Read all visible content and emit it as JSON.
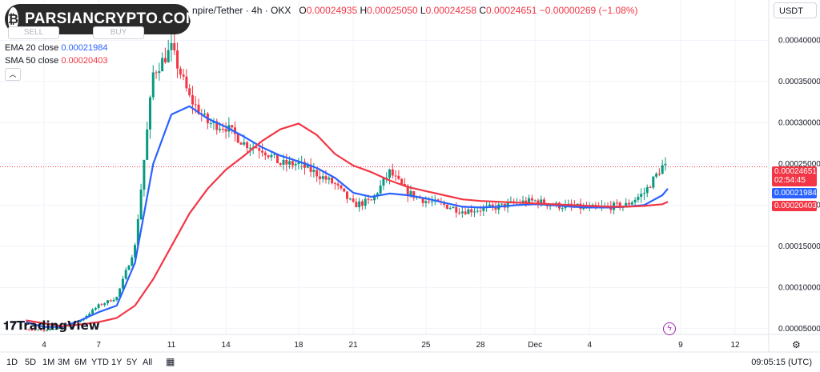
{
  "watermark": {
    "logo_icon": "bitcoin-coin-icon",
    "text": "PARSIANCRYPTO.COM"
  },
  "header": {
    "symbol_suffix": "npire/Tether · 4h · OKX",
    "open_label": "O",
    "open": "0.00024935",
    "high_label": "H",
    "high": "0.00025050",
    "low_label": "L",
    "low": "0.00024258",
    "close_label": "C",
    "close": "0.00024651",
    "change": "−0.00000269 (−1.08%)"
  },
  "trade_buttons": {
    "sell_label": "SELL",
    "buy_label": "BUY"
  },
  "indicators": [
    {
      "name": "EMA 20 close",
      "value": "0.00021984",
      "color": "#2962ff"
    },
    {
      "name": "SMA 50 close",
      "value": "0.00020403",
      "color": "#f23645"
    }
  ],
  "currency": "USDT",
  "price_labels": {
    "last": "0.00024651",
    "countdown": "02:54:45",
    "ema": "0.00021984",
    "sma": "0.00020403"
  },
  "branding": "TradingView",
  "timeframes": [
    "1D",
    "5D",
    "1M",
    "3M",
    "6M",
    "YTD",
    "1Y",
    "5Y",
    "All"
  ],
  "clock": "09:05:15 (UTC)",
  "colors": {
    "up": "#089981",
    "down": "#f23645",
    "ema": "#2962ff",
    "sma": "#f23645",
    "last_price": "#f23645"
  },
  "chart_data": {
    "type": "candlestick",
    "ylim": [
      4.3e-05,
      0.000449
    ],
    "y_ticks": [
      "0.00005000",
      "0.00010000",
      "0.00015000",
      "0.00020000",
      "0.00025000",
      "0.00030000",
      "0.00035000",
      "0.00040000"
    ],
    "x_ticks": [
      "4",
      "7",
      "11",
      "14",
      "18",
      "21",
      "25",
      "28",
      "Dec",
      "4",
      "9",
      "12"
    ],
    "x_tick_dates": [
      "Nov 4",
      "Nov 7",
      "Nov 11",
      "Nov 14",
      "Nov 18",
      "Nov 21",
      "Nov 25",
      "Nov 28",
      "Dec 1",
      "Dec 4",
      "Dec 9",
      "Dec 12"
    ],
    "bars_per_day": 6,
    "price_curve": [
      [
        "Nov 3",
        5e-05
      ],
      [
        "Nov 4",
        4.7e-05
      ],
      [
        "Nov 5",
        5.2e-05
      ],
      [
        "Nov 6",
        6e-05
      ],
      [
        "Nov 7",
        7.8e-05
      ],
      [
        "Nov 8",
        8.8e-05
      ],
      [
        "Nov 9",
        0.00015
      ],
      [
        "Nov 10",
        0.00036
      ],
      [
        "Nov 11",
        0.00039
      ],
      [
        "Nov 12",
        0.00033
      ],
      [
        "Nov 13",
        0.0003
      ],
      [
        "Nov 14",
        0.000295
      ],
      [
        "Nov 15",
        0.000275
      ],
      [
        "Nov 16",
        0.000268
      ],
      [
        "Nov 17",
        0.00025
      ],
      [
        "Nov 18",
        0.00025
      ],
      [
        "Nov 19",
        0.000238
      ],
      [
        "Nov 20",
        0.000225
      ],
      [
        "Nov 21",
        0.0002
      ],
      [
        "Nov 22",
        0.000205
      ],
      [
        "Nov 23",
        0.00024
      ],
      [
        "Nov 24",
        0.000215
      ],
      [
        "Nov 25",
        0.000205
      ],
      [
        "Nov 26",
        0.0002
      ],
      [
        "Nov 27",
        0.000193
      ],
      [
        "Nov 28",
        0.000195
      ],
      [
        "Nov 29",
        0.000198
      ],
      [
        "Nov 30",
        0.000203
      ],
      [
        "Dec 1",
        0.000205
      ],
      [
        "Dec 2",
        0.0002
      ],
      [
        "Dec 3",
        0.000198
      ],
      [
        "Dec 4",
        0.000196
      ],
      [
        "Dec 5",
        0.000198
      ],
      [
        "Dec 6",
        0.0002
      ],
      [
        "Dec 7",
        0.000215
      ],
      [
        "Dec 8",
        0.000247
      ],
      [
        "Dec 8.3",
        0.000246
      ]
    ],
    "series": [
      {
        "name": "EMA 20 close",
        "points": [
          [
            "Nov 3",
            5.8e-05
          ],
          [
            "Nov 4",
            5.2e-05
          ],
          [
            "Nov 5",
            5.2e-05
          ],
          [
            "Nov 6",
            6e-05
          ],
          [
            "Nov 7",
            7e-05
          ],
          [
            "Nov 8",
            7.8e-05
          ],
          [
            "Nov 9",
            0.00013
          ],
          [
            "Nov 10",
            0.00025
          ],
          [
            "Nov 11",
            0.00031
          ],
          [
            "Nov 12",
            0.00032
          ],
          [
            "Nov 13",
            0.000305
          ],
          [
            "Nov 14",
            0.000295
          ],
          [
            "Nov 15",
            0.000283
          ],
          [
            "Nov 16",
            0.00027
          ],
          [
            "Nov 17",
            0.00026
          ],
          [
            "Nov 18",
            0.000253
          ],
          [
            "Nov 19",
            0.000245
          ],
          [
            "Nov 20",
            0.000233
          ],
          [
            "Nov 21",
            0.000215
          ],
          [
            "Nov 22",
            0.00021
          ],
          [
            "Nov 23",
            0.000214
          ],
          [
            "Nov 24",
            0.000212
          ],
          [
            "Nov 25",
            0.000208
          ],
          [
            "Nov 26",
            0.000203
          ],
          [
            "Nov 27",
            0.000198
          ],
          [
            "Nov 28",
            0.000197
          ],
          [
            "Nov 29",
            0.000198
          ],
          [
            "Nov 30",
            0.0002
          ],
          [
            "Dec 1",
            0.000201
          ],
          [
            "Dec 2",
            0.0002
          ],
          [
            "Dec 3",
            0.000198
          ],
          [
            "Dec 4",
            0.000197
          ],
          [
            "Dec 5",
            0.000197
          ],
          [
            "Dec 6",
            0.000198
          ],
          [
            "Dec 7",
            0.0002
          ],
          [
            "Dec 8",
            0.000212
          ],
          [
            "Dec 8.3",
            0.00022
          ]
        ]
      },
      {
        "name": "SMA 50 close",
        "points": [
          [
            "Nov 3",
            6e-05
          ],
          [
            "Nov 5",
            5.3e-05
          ],
          [
            "Nov 6",
            5.5e-05
          ],
          [
            "Nov 7",
            5.8e-05
          ],
          [
            "Nov 8",
            6.3e-05
          ],
          [
            "Nov 9",
            7.8e-05
          ],
          [
            "Nov 10",
            0.00011
          ],
          [
            "Nov 11",
            0.00015
          ],
          [
            "Nov 12",
            0.00019
          ],
          [
            "Nov 13",
            0.00022
          ],
          [
            "Nov 14",
            0.000243
          ],
          [
            "Nov 15",
            0.00026
          ],
          [
            "Nov 16",
            0.000278
          ],
          [
            "Nov 17",
            0.000292
          ],
          [
            "Nov 18",
            0.000299
          ],
          [
            "Nov 19",
            0.000285
          ],
          [
            "Nov 20",
            0.000262
          ],
          [
            "Nov 21",
            0.000248
          ],
          [
            "Nov 22",
            0.00024
          ],
          [
            "Nov 23",
            0.00023
          ],
          [
            "Nov 24",
            0.000222
          ],
          [
            "Nov 25",
            0.000217
          ],
          [
            "Nov 26",
            0.000212
          ],
          [
            "Nov 27",
            0.000207
          ],
          [
            "Nov 28",
            0.000205
          ],
          [
            "Nov 29",
            0.000204
          ],
          [
            "Nov 30",
            0.000203
          ],
          [
            "Dec 1",
            0.000202
          ],
          [
            "Dec 2",
            0.000201
          ],
          [
            "Dec 3",
            0.0002
          ],
          [
            "Dec 4",
            0.000199
          ],
          [
            "Dec 5",
            0.000198
          ],
          [
            "Dec 6",
            0.000198
          ],
          [
            "Dec 7",
            0.000199
          ],
          [
            "Dec 8",
            0.000201
          ],
          [
            "Dec 8.3",
            0.000204
          ]
        ]
      }
    ],
    "grid": true
  }
}
